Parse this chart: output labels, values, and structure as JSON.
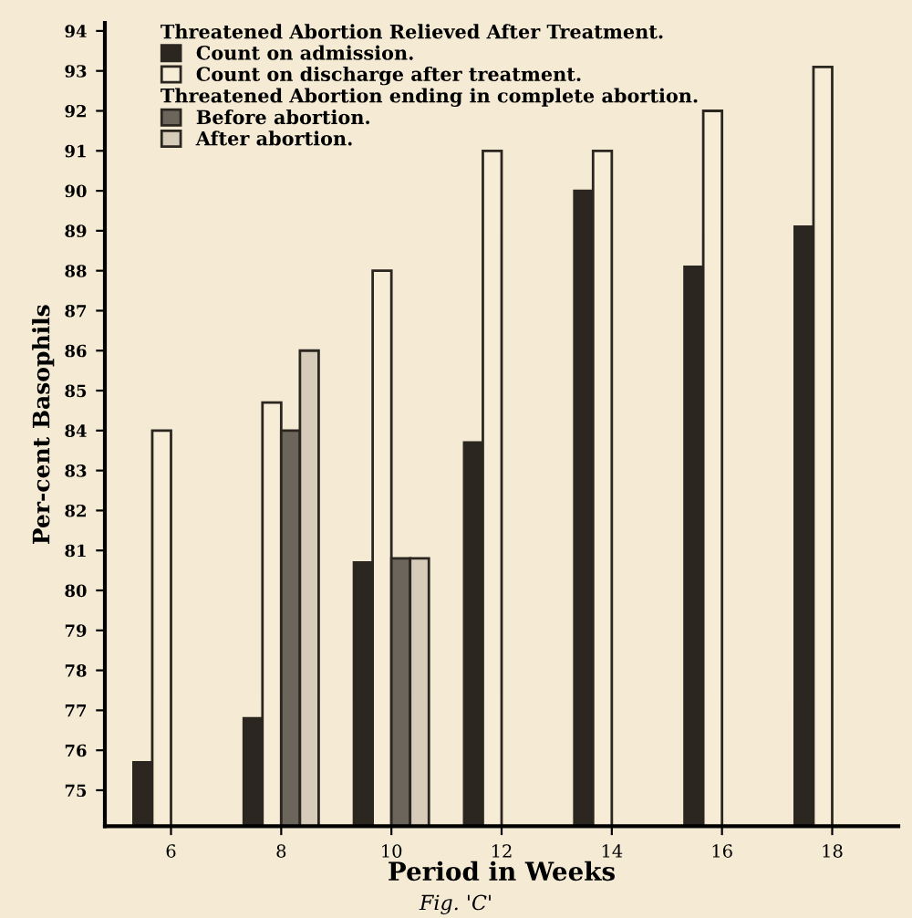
{
  "chart_data": {
    "type": "bar",
    "xlabel": "Period in Weeks",
    "ylabel": "Per-cent Basophils",
    "categories": [
      "6",
      "8",
      "10",
      "12",
      "14",
      "16",
      "18"
    ],
    "series": [
      {
        "name": "Count on admission.",
        "color": "#2b2620",
        "values": [
          75.7,
          76.8,
          80.7,
          83.7,
          90.0,
          88.1,
          89.1
        ]
      },
      {
        "name": "Count on discharge after treatment.",
        "color": "#f7ecd6",
        "values": [
          84.0,
          84.7,
          88.0,
          91.0,
          91.0,
          92.0,
          93.1
        ]
      },
      {
        "name": "Before abortion.",
        "color": "#6b655c",
        "values": [
          null,
          84.0,
          80.8,
          null,
          null,
          null,
          null
        ]
      },
      {
        "name": "After abortion.",
        "color": "#d6ccb9",
        "values": [
          null,
          86.0,
          80.8,
          null,
          null,
          null,
          null
        ]
      }
    ],
    "annotations": [
      "Threatened Abortion Relieved After Treatment.",
      "Threatened Abortion ending in complete abortion.",
      "Fig. 'C'"
    ],
    "ylim": [
      74.1,
      94.2
    ],
    "yticks": [
      75,
      76,
      77,
      78,
      79,
      80,
      81,
      82,
      83,
      84,
      85,
      86,
      87,
      88,
      89,
      90,
      91,
      92,
      93,
      94
    ],
    "grid": false,
    "legend": "top left"
  }
}
